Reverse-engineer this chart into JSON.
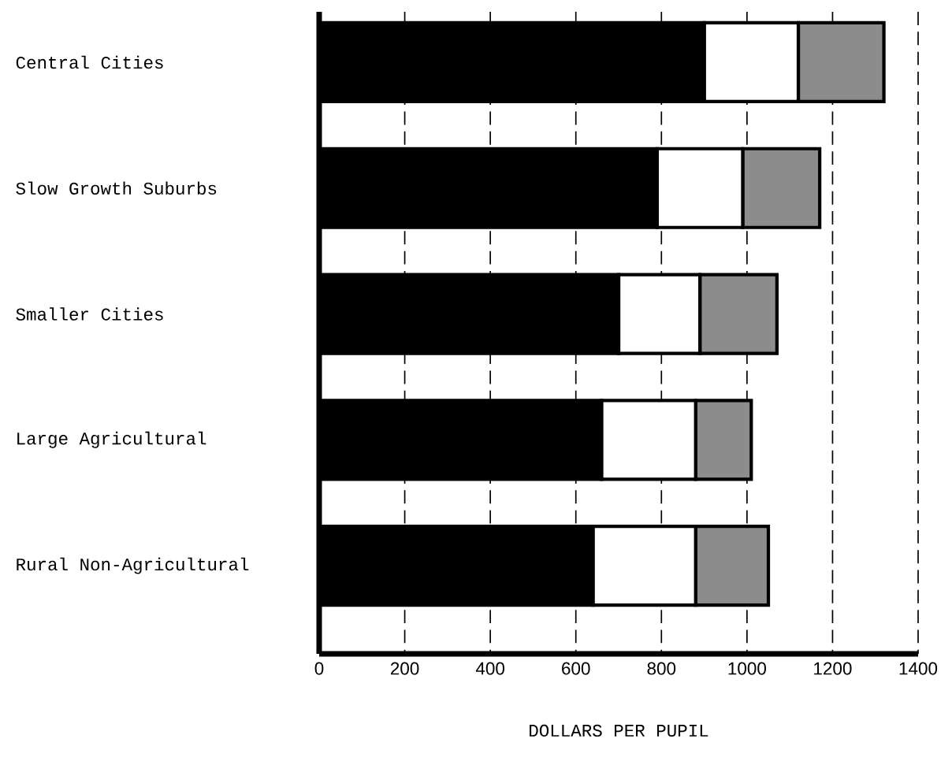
{
  "chart_data": {
    "type": "bar",
    "orientation": "horizontal",
    "stacked": true,
    "categories": [
      "Central Cities",
      "Slow Growth Suburbs",
      "Smaller Cities",
      "Large Agricultural",
      "Rural Non-Agricultural"
    ],
    "series": [
      {
        "color": "#000000",
        "values": [
          900,
          790,
          700,
          660,
          640
        ]
      },
      {
        "color": "#ffffff",
        "values": [
          220,
          200,
          190,
          220,
          240
        ]
      },
      {
        "color": "#8c8c8c",
        "values": [
          200,
          180,
          180,
          130,
          170
        ]
      }
    ],
    "xlabel": "DOLLARS PER PUPIL",
    "xlim": [
      0,
      1400
    ],
    "xticks": [
      0,
      200,
      400,
      600,
      800,
      1000,
      1200,
      1400
    ],
    "grid": "x"
  }
}
